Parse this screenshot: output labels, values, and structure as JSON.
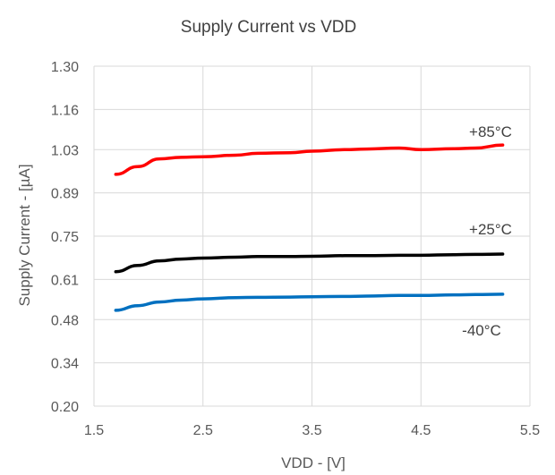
{
  "chart_data": {
    "type": "line",
    "title": "Supply Current vs VDD",
    "xlabel": "VDD - [V]",
    "ylabel": "Supply Current - [µA]",
    "xlim": [
      1.5,
      5.5
    ],
    "ylim": [
      0.2,
      1.3
    ],
    "x_ticks": [
      "1.5",
      "2.5",
      "3.5",
      "4.5",
      "5.5"
    ],
    "x_tick_values": [
      1.5,
      2.5,
      3.5,
      4.5,
      5.5
    ],
    "y_ticks": [
      "1.30",
      "1.16",
      "1.03",
      "0.89",
      "0.75",
      "0.61",
      "0.48",
      "0.34",
      "0.20"
    ],
    "y_tick_values": [
      1.3,
      1.16,
      1.03,
      0.89,
      0.75,
      0.61,
      0.48,
      0.34,
      0.2
    ],
    "grid": true,
    "series": [
      {
        "name": "+85°C",
        "color": "#ff0000",
        "x": [
          1.7,
          1.9,
          2.1,
          2.3,
          2.5,
          2.8,
          3.0,
          3.3,
          3.5,
          3.8,
          4.0,
          4.3,
          4.5,
          4.8,
          5.0,
          5.25
        ],
        "y": [
          0.95,
          0.975,
          1.0,
          1.005,
          1.007,
          1.012,
          1.018,
          1.02,
          1.025,
          1.03,
          1.032,
          1.035,
          1.03,
          1.033,
          1.035,
          1.045
        ]
      },
      {
        "name": "+25°C",
        "color": "#000000",
        "x": [
          1.7,
          1.9,
          2.1,
          2.3,
          2.5,
          2.8,
          3.0,
          3.3,
          3.5,
          3.8,
          4.0,
          4.3,
          4.5,
          4.8,
          5.0,
          5.25
        ],
        "y": [
          0.635,
          0.655,
          0.67,
          0.676,
          0.679,
          0.682,
          0.684,
          0.684,
          0.685,
          0.687,
          0.687,
          0.688,
          0.688,
          0.69,
          0.691,
          0.692
        ]
      },
      {
        "name": "-40°C",
        "color": "#0070c0",
        "x": [
          1.7,
          1.9,
          2.1,
          2.3,
          2.5,
          2.8,
          3.0,
          3.3,
          3.5,
          3.8,
          4.0,
          4.3,
          4.5,
          4.8,
          5.0,
          5.25
        ],
        "y": [
          0.51,
          0.525,
          0.537,
          0.543,
          0.547,
          0.551,
          0.552,
          0.553,
          0.554,
          0.555,
          0.556,
          0.558,
          0.558,
          0.56,
          0.561,
          0.562
        ]
      }
    ],
    "series_labels": [
      {
        "text": "+85°C"
      },
      {
        "text": "+25°C"
      },
      {
        "text": "-40°C"
      }
    ]
  }
}
